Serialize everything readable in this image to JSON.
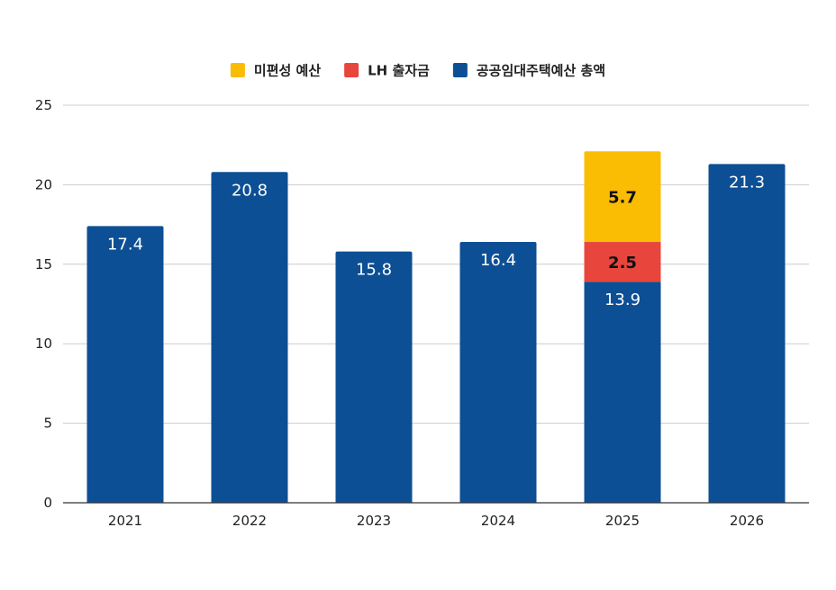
{
  "chart_data": {
    "type": "bar",
    "stacked": true,
    "categories": [
      "2021",
      "2022",
      "2023",
      "2024",
      "2025",
      "2026"
    ],
    "series": [
      {
        "name": "공공임대주택예산 총액",
        "color": "#0d4f95",
        "values": [
          17.4,
          20.8,
          15.8,
          16.4,
          13.9,
          21.3
        ],
        "labels": [
          "17.4",
          "20.8",
          "15.8",
          "16.4",
          "13.9",
          "21.3"
        ]
      },
      {
        "name": "LH 출자금",
        "color": "#e8453c",
        "values": [
          0,
          0,
          0,
          0,
          2.5,
          0
        ],
        "labels": [
          "",
          "",
          "",
          "",
          "2.5",
          ""
        ]
      },
      {
        "name": "미편성 예산",
        "color": "#fbbc04",
        "values": [
          0,
          0,
          0,
          0,
          5.7,
          0
        ],
        "labels": [
          "",
          "",
          "",
          "",
          "5.7",
          ""
        ]
      }
    ],
    "legend_order": [
      "미편성 예산",
      "LH 출자금",
      "공공임대주택예산 총액"
    ],
    "yticks": [
      "0",
      "5",
      "10",
      "15",
      "20",
      "25"
    ],
    "ylim": [
      0,
      25
    ],
    "grid": true,
    "legend_position": "top-center",
    "title": "",
    "xlabel": "",
    "ylabel": ""
  },
  "colors": {
    "grid": "#cccccc",
    "axis": "#333333",
    "text": "#222222"
  }
}
